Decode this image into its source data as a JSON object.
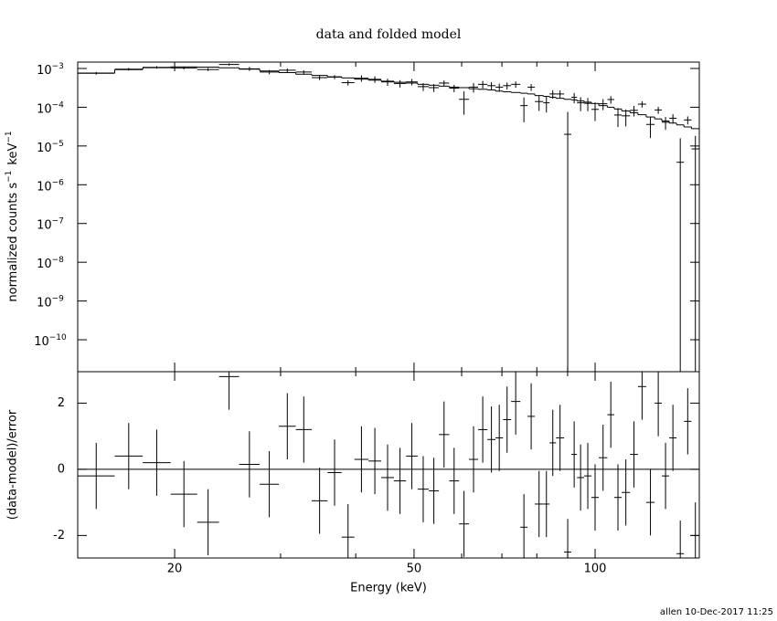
{
  "chart_data": {
    "type": "spectrum",
    "title": "data and folded model",
    "xlabel": "Energy (keV)",
    "ylabel_parts": [
      {
        "text": "normalized counts s",
        "sup": "−1"
      },
      {
        "text": "keV",
        "sup": "−1"
      }
    ],
    "residual_ylabel": "(data-model)/error",
    "footer": "allen 10-Dec-2017 11:25",
    "log_x": true,
    "log_y": true,
    "xlim": [
      13.8,
      149
    ],
    "xticks": [
      20,
      50,
      100
    ],
    "x_minor_ticks": [
      30,
      40,
      60,
      70,
      80,
      90
    ],
    "ylim": [
      1.5e-11,
      0.00146
    ],
    "yticks": [
      {
        "value": 0.001,
        "label": "10",
        "exponent": "−3"
      },
      {
        "value": 0.0001,
        "label": "10",
        "exponent": "−4"
      },
      {
        "value": 1e-05,
        "label": "10",
        "exponent": "−5"
      },
      {
        "value": 1e-06,
        "label": "10",
        "exponent": "−6"
      },
      {
        "value": 1e-07,
        "label": "10",
        "exponent": "−7"
      },
      {
        "value": 1e-08,
        "label": "10",
        "exponent": "−8"
      },
      {
        "value": 1e-09,
        "label": "10",
        "exponent": "−9"
      },
      {
        "value": 1e-10,
        "label": "10",
        "exponent": "−10"
      }
    ],
    "residual_ylim": [
      -2.68,
      2.95
    ],
    "residual_yticks": [
      -2,
      0,
      2
    ],
    "data_color": "#000000",
    "model_color": "#000000",
    "zero_line_color": "#00dd00",
    "bins": [
      13.8,
      15.9,
      17.7,
      19.7,
      21.8,
      23.7,
      25.6,
      27.7,
      29.8,
      31.8,
      33.8,
      35.9,
      37.9,
      39.8,
      42.0,
      44.1,
      46.3,
      48.5,
      50.7,
      52.9,
      55.0,
      57.2,
      59.4,
      61.7,
      63.9,
      66.2,
      68.3,
      70.3,
      72.5,
      75.1,
      77.2,
      79.4,
      82.0,
      84.0,
      86.1,
      88.8,
      91.3,
      93.3,
      95.9,
      98.6,
      101.4,
      104.8,
      107.6,
      110.7,
      114.3,
      117.8,
      121.6,
      125.6,
      129.1,
      132.8,
      136.6,
      140.5,
      144.6,
      149
    ],
    "model": [
      0.00076,
      0.00093,
      0.00105,
      0.0011,
      0.00108,
      0.00104,
      0.00096,
      0.00086,
      0.00078,
      0.00071,
      0.00066,
      0.00061,
      0.00057,
      0.00053,
      0.0005,
      0.00047,
      0.00044,
      0.00042,
      0.00039,
      0.00037,
      0.00035,
      0.00033,
      0.00032,
      0.0003,
      0.00029,
      0.00028,
      0.00026,
      0.00025,
      0.00024,
      0.00023,
      0.00022,
      0.0002,
      0.00019,
      0.00018,
      0.00017,
      0.00016,
      0.000155,
      0.000145,
      0.000135,
      0.000125,
      0.00011,
      0.0001,
      9e-05,
      8e-05,
      7.2e-05,
      6.4e-05,
      5.6e-05,
      5e-05,
      4.4e-05,
      3.9e-05,
      3.5e-05,
      3.1e-05,
      2.8e-05
    ],
    "counts": [
      0.00075,
      0.00096,
      0.00107,
      0.00103,
      0.00094,
      0.00127,
      0.00098,
      0.00081,
      0.0009,
      0.00081,
      0.00058,
      0.0006,
      0.00043,
      0.00056,
      0.000525,
      0.00045,
      0.00041,
      0.00045,
      0.00034,
      0.00032,
      0.00042,
      0.00031,
      0.00016,
      0.00033,
      0.00039,
      0.00036,
      0.00033,
      0.00036,
      0.00039,
      0.00011,
      0.00033,
      0.00014,
      0.00013,
      0.00022,
      0.00022,
      2e-05,
      0.00018,
      0.00013,
      0.000126,
      8.8e-05,
      0.000123,
      0.000158,
      6.3e-05,
      6e-05,
      8.3e-05,
      0.00012,
      3.6e-05,
      8.5e-05,
      4.1e-05,
      5.2e-05,
      3.8e-06,
      4.7e-05,
      8.4e-06
    ],
    "counts_err": [
      6.1e-05,
      7.4e-05,
      8.4e-05,
      8.8e-05,
      8.6e-05,
      8.3e-05,
      0.000115,
      0.000103,
      9.4e-05,
      8.5e-05,
      7.9e-05,
      7.3e-05,
      6.8e-05,
      0.000106,
      0.0001,
      9.4e-05,
      8.8e-05,
      8.4e-05,
      7.8e-05,
      7.4e-05,
      7e-05,
      6.6e-05,
      9.6e-05,
      9e-05,
      8.7e-05,
      8.4e-05,
      7.8e-05,
      7.5e-05,
      7.2e-05,
      6.9e-05,
      6.6e-05,
      6e-05,
      5.7e-05,
      5.4e-05,
      5.1e-05,
      5.6e-05,
      5.4e-05,
      5.1e-05,
      4.7e-05,
      4.4e-05,
      3.9e-05,
      3.5e-05,
      3.2e-05,
      2.8e-05,
      2.5e-05,
      2.2e-05,
      2e-05,
      1.75e-05,
      1.5e-05,
      1.4e-05,
      1.2e-05,
      1.1e-05,
      9.8e-06
    ],
    "residuals": [
      -0.2,
      0.4,
      0.2,
      -0.75,
      -1.6,
      2.8,
      0.15,
      -0.45,
      1.3,
      1.2,
      -0.95,
      -0.1,
      -2.05,
      0.3,
      0.25,
      -0.25,
      -0.35,
      0.4,
      -0.6,
      -0.65,
      1.05,
      -0.35,
      -1.65,
      0.3,
      1.2,
      0.9,
      0.95,
      1.5,
      2.05,
      -1.75,
      1.6,
      -1.05,
      -1.05,
      0.8,
      0.95,
      -2.5,
      0.45,
      -0.25,
      -0.2,
      -0.85,
      0.35,
      1.65,
      -0.85,
      -0.7,
      0.45,
      2.5,
      -1,
      2,
      -0.2,
      0.95,
      -2.55,
      1.45,
      -2
    ],
    "residual_error": 1
  }
}
